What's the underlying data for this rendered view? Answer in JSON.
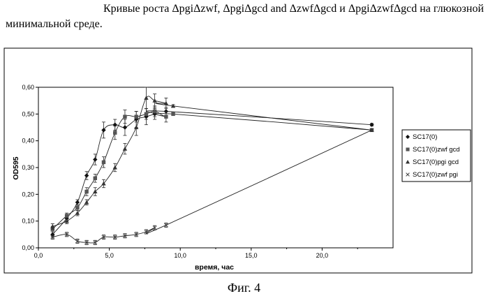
{
  "caption": {
    "line1": "Кривые роста ΔpgiΔzwf, ΔpgiΔgcd and ΔzwfΔgcd и ΔpgiΔzwfΔgcd на глюкозной",
    "line2": "минимальной среде."
  },
  "figure_label": "Фиг. 4",
  "chart_data": {
    "type": "scatter",
    "xlabel": "время, час",
    "ylabel": "OD595",
    "xlim": [
      0,
      25
    ],
    "ylim": [
      0,
      0.6
    ],
    "x_ticks": [
      "0,0",
      "5,0",
      "10,0",
      "15,0",
      "20,0"
    ],
    "x_tick_values": [
      0,
      5,
      10,
      15,
      20
    ],
    "y_ticks": [
      "0,00",
      "0,10",
      "0,20",
      "0,30",
      "0,40",
      "0,50",
      "0,60"
    ],
    "y_tick_values": [
      0,
      0.1,
      0.2,
      0.3,
      0.4,
      0.5,
      0.6
    ],
    "grid": false,
    "legend_position": "right",
    "series": [
      {
        "name": "SC17(0)",
        "marker": "diamond",
        "x": [
          1,
          2,
          2.75,
          3.4,
          4,
          4.6,
          5.4,
          6.1,
          6.9,
          7.6,
          8.2,
          9,
          23.5
        ],
        "y": [
          0.05,
          0.11,
          0.17,
          0.27,
          0.33,
          0.44,
          0.46,
          0.45,
          0.48,
          0.49,
          0.5,
          0.51,
          0.46
        ],
        "err": [
          0.01,
          0.01,
          0.01,
          0.015,
          0.02,
          0.03,
          0.02,
          0.03,
          0.03,
          0.03,
          0.02,
          0.015,
          0.005
        ]
      },
      {
        "name": "SC17(0)zwf gcd",
        "marker": "square",
        "x": [
          1,
          2,
          2.75,
          3.4,
          4,
          4.6,
          5.4,
          6.1,
          6.9,
          7.6,
          8.2,
          9,
          9.5,
          23.5
        ],
        "y": [
          0.07,
          0.12,
          0.15,
          0.21,
          0.26,
          0.32,
          0.43,
          0.49,
          0.49,
          0.5,
          0.51,
          0.49,
          0.5,
          0.44
        ],
        "err": [
          0.01,
          0.01,
          0.01,
          0.015,
          0.015,
          0.02,
          0.025,
          0.025,
          0.02,
          0.02,
          0.02,
          0.02,
          0.005,
          0.005
        ]
      },
      {
        "name": "SC17(0)pgi gcd",
        "marker": "triangle",
        "x": [
          1,
          2,
          2.75,
          3.4,
          4,
          4.6,
          5.4,
          6.1,
          6.9,
          7.6,
          8.2,
          9,
          9.5,
          23.5
        ],
        "y": [
          0.08,
          0.1,
          0.13,
          0.17,
          0.21,
          0.24,
          0.3,
          0.37,
          0.45,
          0.56,
          0.55,
          0.54,
          0.53,
          0.44
        ],
        "err": [
          0.01,
          0.01,
          0.01,
          0.01,
          0.015,
          0.015,
          0.015,
          0.02,
          0.03,
          0.04,
          0.025,
          0.02,
          0.005,
          0.005
        ]
      },
      {
        "name": "SC17(0)zwf pgi",
        "marker": "x",
        "x": [
          1,
          2,
          2.75,
          3.4,
          4,
          4.6,
          5.4,
          6.1,
          6.9,
          7.6,
          8.2,
          9,
          23.5
        ],
        "y": [
          0.04,
          0.05,
          0.025,
          0.02,
          0.02,
          0.04,
          0.04,
          0.045,
          0.05,
          0.06,
          0.075,
          0.085,
          0.44
        ],
        "err": [
          0.008,
          0.008,
          0.008,
          0.008,
          0.008,
          0.008,
          0.008,
          0.008,
          0.008,
          0.008,
          0.008,
          0.008,
          0.005
        ]
      }
    ]
  }
}
